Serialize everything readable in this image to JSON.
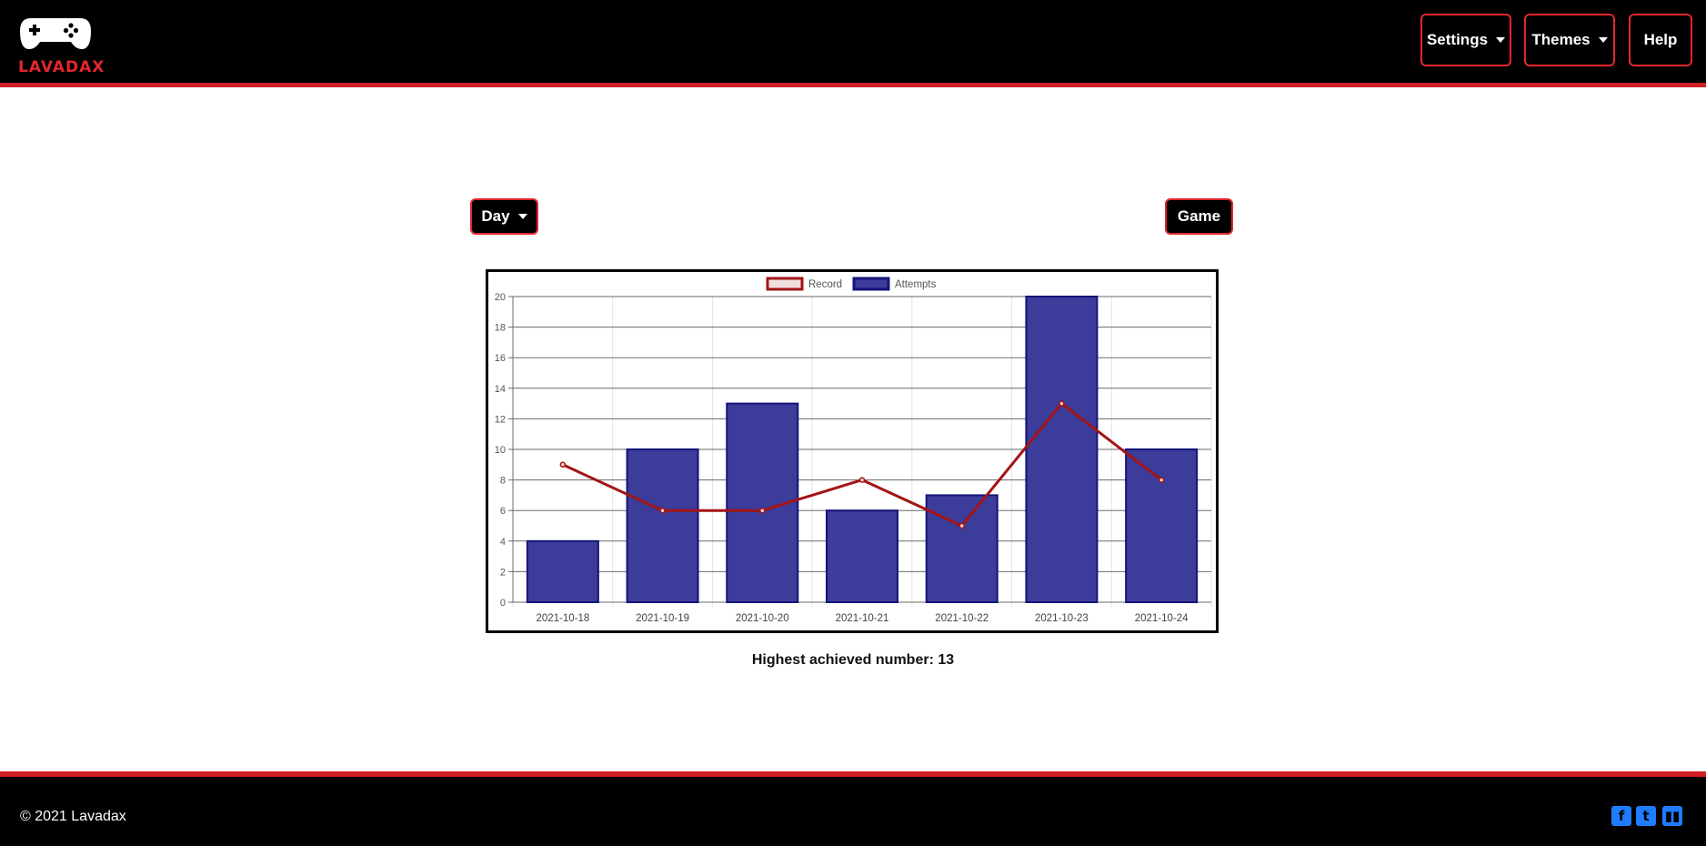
{
  "header": {
    "logo_text": "LAVADAX",
    "nav": {
      "settings_label": "Settings",
      "themes_label": "Themes",
      "help_label": "Help"
    }
  },
  "controls": {
    "period_label": "Day",
    "game_label": "Game"
  },
  "chart_data": {
    "type": "bar",
    "categories": [
      "2021-10-18",
      "2021-10-19",
      "2021-10-20",
      "2021-10-21",
      "2021-10-22",
      "2021-10-23",
      "2021-10-24"
    ],
    "series": [
      {
        "name": "Record",
        "type": "line",
        "color": "#a31515",
        "values": [
          9,
          6,
          6,
          8,
          5,
          13,
          8
        ]
      },
      {
        "name": "Attempts",
        "type": "bar",
        "color": "#3c3c9a",
        "border": "#14147a",
        "values": [
          4,
          10,
          13,
          6,
          7,
          20,
          10
        ]
      }
    ],
    "yticks": [
      "0",
      "2",
      "4",
      "6",
      "8",
      "10",
      "12",
      "14",
      "16",
      "18",
      "20"
    ],
    "ylim": [
      0,
      20
    ],
    "grid": true,
    "legend_position": "top"
  },
  "summary": {
    "highest_text": "Highest achieved number: 13"
  },
  "footer": {
    "copyright": "© 2021 Lavadax"
  },
  "colors": {
    "accent": "#e3262c",
    "social": "#1f7cff"
  }
}
